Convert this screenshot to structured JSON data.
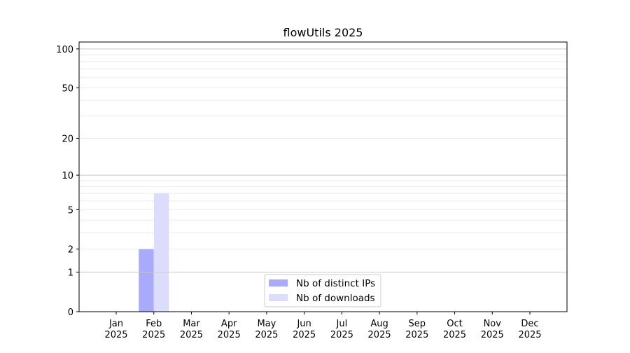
{
  "chart_data": {
    "type": "bar",
    "title": "flowUtils 2025",
    "xlabel": "",
    "ylabel": "",
    "yscale": "log(1+y)",
    "ylim": [
      0,
      113
    ],
    "yticks": [
      0,
      1,
      2,
      5,
      10,
      20,
      50,
      100
    ],
    "grid": "horizontal, major and minor",
    "legend_position": "bottom-center",
    "categories": [
      "Jan\n2025",
      "Feb\n2025",
      "Mar\n2025",
      "Apr\n2025",
      "May\n2025",
      "Jun\n2025",
      "Jul\n2025",
      "Aug\n2025",
      "Sep\n2025",
      "Oct\n2025",
      "Nov\n2025",
      "Dec\n2025"
    ],
    "series": [
      {
        "name": "Nb of distinct IPs",
        "color": "#aaaafc",
        "values": [
          0,
          2,
          0,
          0,
          0,
          0,
          0,
          0,
          0,
          0,
          0,
          0
        ]
      },
      {
        "name": "Nb of downloads",
        "color": "#dcdcfc",
        "values": [
          0,
          7,
          0,
          0,
          0,
          0,
          0,
          0,
          0,
          0,
          0,
          0
        ]
      }
    ]
  }
}
